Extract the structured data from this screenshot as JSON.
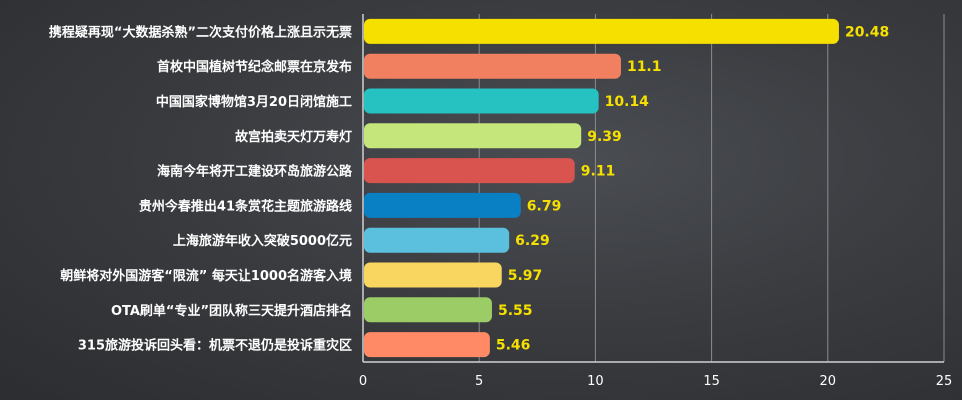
{
  "chart_data": {
    "type": "bar",
    "orientation": "horizontal",
    "categories": [
      "携程疑再现“大数据杀熟”二次支付价格上涨且示无票",
      "首枚中国植树节纪念邮票在京发布",
      "中国国家博物馆3月20日闭馆施工",
      "故宫拍卖天灯万寿灯",
      "海南今年将开工建设环岛旅游公路",
      "贵州今春推出41条赏花主题旅游路线",
      "上海旅游年收入突破5000亿元",
      "朝鲜将对外国游客“限流” 每天让1000名游客入境",
      "OTA刷单“专业”团队称三天提升酒店排名",
      "315旅游投诉回头看：机票不退仍是投诉重灾区"
    ],
    "values": [
      20.48,
      11.1,
      10.14,
      9.39,
      9.11,
      6.79,
      6.29,
      5.97,
      5.55,
      5.46
    ],
    "value_labels": [
      "20.48",
      "11.1",
      "10.14",
      "9.39",
      "9.11",
      "6.79",
      "6.29",
      "5.97",
      "5.55",
      "5.46"
    ],
    "colors": [
      "#f5e000",
      "#f08060",
      "#26c2c2",
      "#c5e67a",
      "#d9534f",
      "#0a80c4",
      "#5bc0de",
      "#f9d65f",
      "#9ccc65",
      "#ff8a65"
    ],
    "xlim": [
      0,
      25
    ],
    "xticks": [
      "0",
      "5",
      "10",
      "15",
      "20",
      "25"
    ],
    "grid": true,
    "title": "",
    "xlabel": "",
    "ylabel": ""
  }
}
